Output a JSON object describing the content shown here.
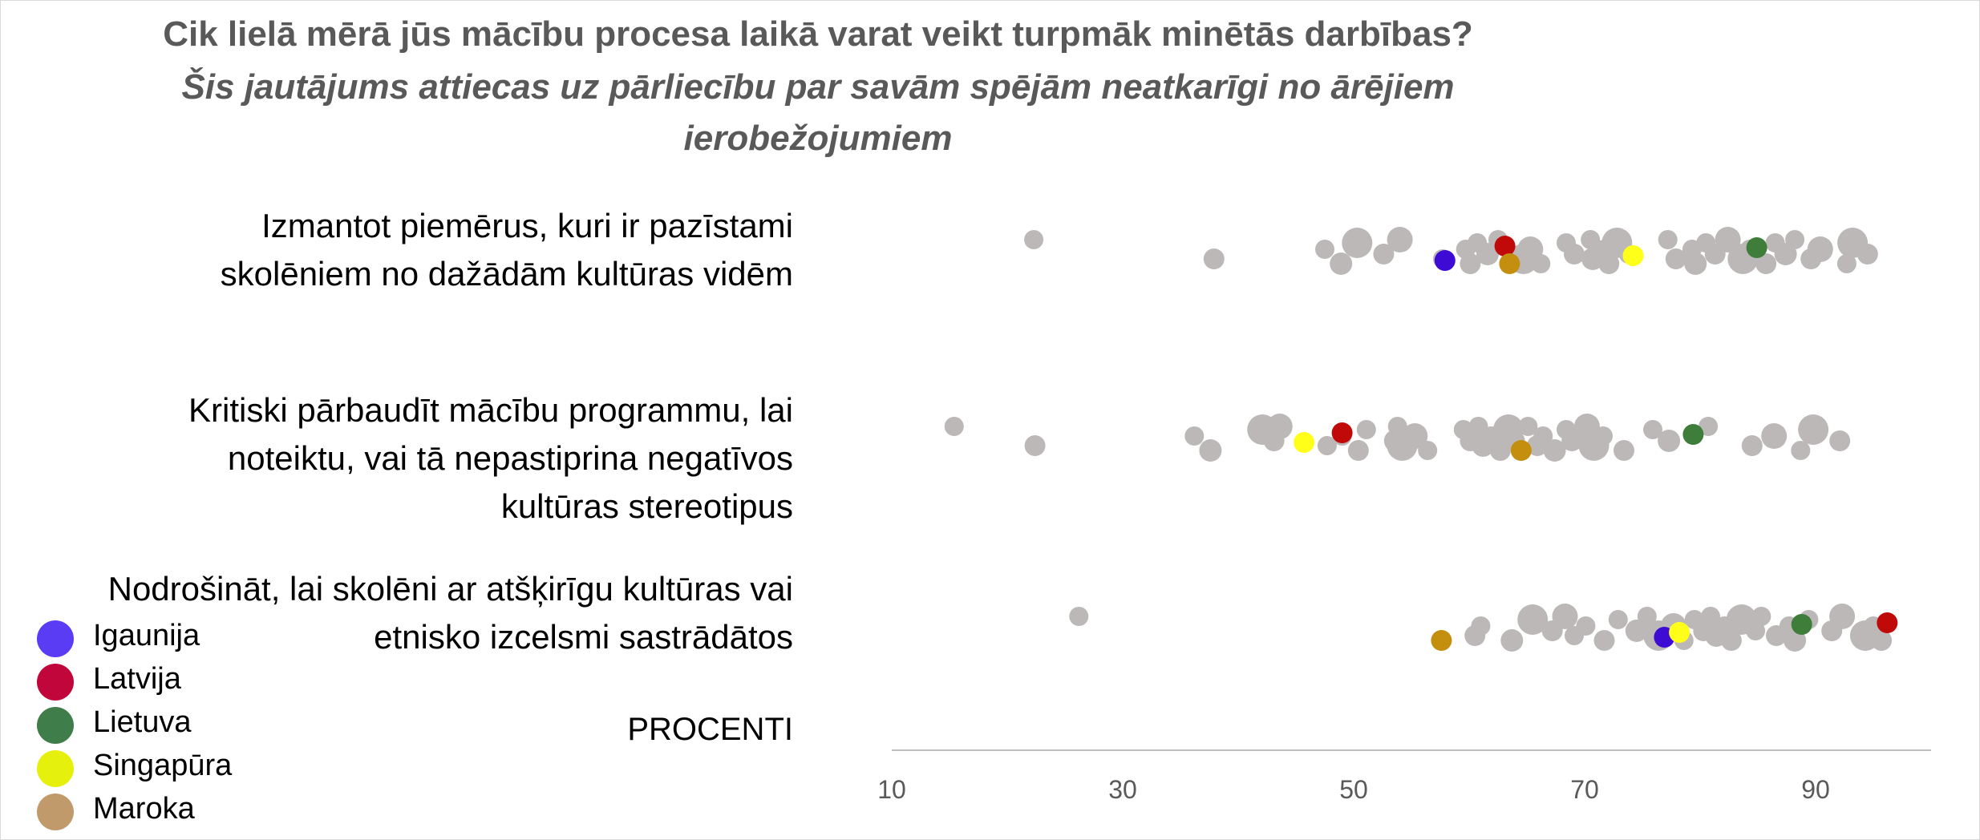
{
  "colors": {
    "background": "#ffffff",
    "other_countries": "#bcb8b8",
    "axis": "#bfbfbf",
    "title": "#595959"
  },
  "chart_data": {
    "type": "scatter",
    "title": "Cik lielā mērā jūs mācību procesa laikā varat veikt turpmāk minētās darbības?",
    "subtitle": "Šis jautājums attiecas uz pārliecību par savām spējām neatkarīgi no ārējiem ierobežojumiem",
    "subtitle_lines": [
      "Šis jautājums attiecas uz pārliecību par savām spējām neatkarīgi no ārējiem",
      "ierobežojumiem"
    ],
    "xlabel": "PROCENTI",
    "xlim": [
      10,
      100
    ],
    "xticks": [
      10,
      30,
      50,
      70,
      90
    ],
    "grid": false,
    "legend_position": "bottom-left",
    "categories": [
      "Izmantot piemērus, kuri ir pazīstami skolēniem no dažādām kultūras vidēm",
      "Kritiski pārbaudīt mācību programmu, lai noteiktu, vai tā nepastiprina negatīvos kultūras stereotipus",
      "Nodrošināt, lai skolēni ar atšķirīgu kultūras vai etnisko izcelsmi sastrādātos"
    ],
    "category_lines": [
      [
        "Izmantot piemērus, kuri ir pazīstami",
        "skolēniem no dažādām kultūras vidēm"
      ],
      [
        "Kritiski pārbaudīt mācību programmu, lai",
        "noteiktu, vai tā nepastiprina negatīvos",
        "kultūras stereotipus"
      ],
      [
        "Nodrošināt, lai skolēni ar atšķirīgu kultūras vai",
        "etnisko izcelsmi sastrādātos"
      ]
    ],
    "series": [
      {
        "name": "Igaunija",
        "color": "#5b3cf5",
        "values": [
          57.9,
          null,
          76.9
        ]
      },
      {
        "name": "Latvija",
        "color": "#c0063a",
        "values": [
          63.1,
          49.0,
          96.2
        ]
      },
      {
        "name": "Lietuva",
        "color": "#3f7d4a",
        "values": [
          84.9,
          79.4,
          88.8
        ]
      },
      {
        "name": "Singapūra",
        "color": "#e6f00d",
        "values": [
          74.2,
          45.7,
          78.2
        ]
      },
      {
        "name": "Maroka",
        "color": "#c09a6b",
        "values": [
          63.5,
          64.5,
          57.6
        ]
      }
    ],
    "highlight_points": [
      {
        "series": "Igaunija",
        "category": 0,
        "x": 57.9,
        "color": "#3d0bd4"
      },
      {
        "series": "Latvija",
        "category": 0,
        "x": 63.1,
        "color": "#c00a0a"
      },
      {
        "series": "Lietuva",
        "category": 0,
        "x": 84.9,
        "color": "#3f7d3a"
      },
      {
        "series": "Singapūra",
        "category": 0,
        "x": 74.2,
        "color": "#ffff1a"
      },
      {
        "series": "Maroka",
        "category": 0,
        "x": 63.5,
        "color": "#c48f0e"
      },
      {
        "series": "Latvija",
        "category": 1,
        "x": 49.0,
        "color": "#c00a0a"
      },
      {
        "series": "Lietuva",
        "category": 1,
        "x": 79.4,
        "color": "#3f7d3a"
      },
      {
        "series": "Singapūra",
        "category": 1,
        "x": 45.7,
        "color": "#ffff1a"
      },
      {
        "series": "Maroka",
        "category": 1,
        "x": 64.5,
        "color": "#c48f0e"
      },
      {
        "series": "Igaunija",
        "category": 2,
        "x": 76.9,
        "color": "#3d0bd4"
      },
      {
        "series": "Latvija",
        "category": 2,
        "x": 96.2,
        "color": "#c00a0a"
      },
      {
        "series": "Lietuva",
        "category": 2,
        "x": 88.8,
        "color": "#3f7d3a"
      },
      {
        "series": "Singapūra",
        "category": 2,
        "x": 78.2,
        "color": "#ffff1a"
      },
      {
        "series": "Maroka",
        "category": 2,
        "x": 57.6,
        "color": "#c48f0e"
      }
    ],
    "other_countries": [
      {
        "category": 0,
        "values": [
          22.3,
          37.9,
          47.5,
          48.9,
          50.3,
          52.6,
          54.0,
          57.7,
          59.7,
          60.1,
          60.7,
          61.6,
          62.5,
          64.7,
          65.3,
          66.2,
          68.4,
          69.1,
          70.5,
          70.7,
          71.7,
          72.1,
          72.8,
          73.8,
          77.2,
          77.9,
          79.3,
          79.6,
          80.5,
          81.3,
          82.4,
          83.7,
          84.3,
          85.7,
          86.5,
          87.4,
          88.2,
          89.6,
          90.4,
          92.7,
          93.2,
          94.5
        ]
      },
      {
        "category": 1,
        "values": [
          15.4,
          22.4,
          36.2,
          37.6,
          42.1,
          43.1,
          43.6,
          47.7,
          49.0,
          50.4,
          51.1,
          53.6,
          53.8,
          54.2,
          55.3,
          56.4,
          59.5,
          60.1,
          60.8,
          61.2,
          61.9,
          62.7,
          63.4,
          64.0,
          65.1,
          65.9,
          66.4,
          67.4,
          68.4,
          68.9,
          70.2,
          70.8,
          71.6,
          73.4,
          75.9,
          77.3,
          80.7,
          84.5,
          86.4,
          88.7,
          89.8,
          92.1
        ]
      },
      {
        "category": 2,
        "values": [
          26.2,
          60.5,
          61.0,
          63.7,
          65.5,
          67.2,
          68.3,
          69.1,
          70.1,
          71.7,
          72.9,
          74.5,
          75.4,
          76.4,
          77.7,
          78.6,
          79.5,
          80.3,
          80.9,
          81.4,
          82.1,
          82.7,
          83.6,
          84.8,
          85.3,
          86.6,
          87.7,
          88.2,
          89.4,
          91.4,
          92.3,
          94.3,
          95.0,
          95.7
        ]
      }
    ]
  },
  "legend": {
    "items": [
      {
        "label": "Igaunija",
        "color": "#5b3cf5"
      },
      {
        "label": "Latvija",
        "color": "#c0063a"
      },
      {
        "label": "Lietuva",
        "color": "#3f7d4a"
      },
      {
        "label": "Singapūra",
        "color": "#e6f00d"
      },
      {
        "label": "Maroka",
        "color": "#c09a6b"
      }
    ]
  }
}
